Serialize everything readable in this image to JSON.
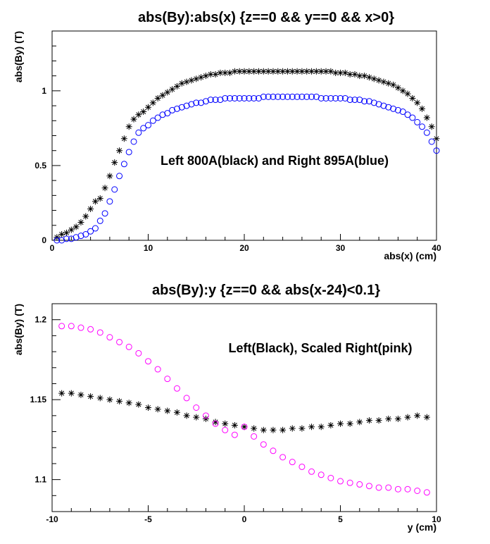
{
  "chart_data": [
    {
      "type": "scatter",
      "title": "abs(By):abs(x) {z==0 && y==0 && x>0}",
      "xlabel": "abs(x) (cm)",
      "ylabel": "abs(By) (T)",
      "xlim": [
        0,
        40
      ],
      "ylim": [
        0,
        1.4
      ],
      "x_ticks": [
        0,
        10,
        20,
        30,
        40
      ],
      "x_tick_labels": [
        "0",
        "10",
        "20",
        "30",
        "40"
      ],
      "y_ticks": [
        0,
        0.5,
        1
      ],
      "y_tick_labels": [
        "0",
        "0.5",
        "1"
      ],
      "annotation": "Left 800A(black) and Right 895A(blue)",
      "grid": false,
      "series": [
        {
          "marker": "asterisk",
          "color": "#000000",
          "x": [
            0.5,
            1.0,
            1.5,
            2.0,
            2.5,
            3.0,
            3.5,
            4.0,
            4.5,
            5.0,
            5.5,
            6.0,
            6.5,
            7.0,
            7.5,
            8.0,
            8.5,
            9.0,
            9.5,
            10.0,
            10.5,
            11.0,
            11.5,
            12.0,
            12.5,
            13.0,
            13.5,
            14.0,
            14.5,
            15.0,
            15.5,
            16.0,
            16.5,
            17.0,
            17.5,
            18.0,
            18.5,
            19.0,
            19.5,
            20.0,
            20.5,
            21.0,
            21.5,
            22.0,
            22.5,
            23.0,
            23.5,
            24.0,
            24.5,
            25.0,
            25.5,
            26.0,
            26.5,
            27.0,
            27.5,
            28.0,
            28.5,
            29.0,
            29.5,
            30.0,
            30.5,
            31.0,
            31.5,
            32.0,
            32.5,
            33.0,
            33.5,
            34.0,
            34.5,
            35.0,
            35.5,
            36.0,
            36.5,
            37.0,
            37.5,
            38.0,
            38.5,
            39.0,
            39.5,
            40.0
          ],
          "y": [
            0.02,
            0.04,
            0.05,
            0.07,
            0.09,
            0.12,
            0.16,
            0.21,
            0.26,
            0.28,
            0.35,
            0.43,
            0.52,
            0.6,
            0.68,
            0.76,
            0.81,
            0.84,
            0.86,
            0.89,
            0.92,
            0.95,
            0.97,
            0.99,
            1.01,
            1.03,
            1.05,
            1.06,
            1.07,
            1.08,
            1.09,
            1.1,
            1.11,
            1.11,
            1.12,
            1.12,
            1.12,
            1.13,
            1.13,
            1.13,
            1.13,
            1.13,
            1.13,
            1.13,
            1.13,
            1.13,
            1.13,
            1.13,
            1.13,
            1.13,
            1.13,
            1.13,
            1.13,
            1.13,
            1.13,
            1.13,
            1.13,
            1.13,
            1.12,
            1.12,
            1.12,
            1.11,
            1.11,
            1.1,
            1.1,
            1.09,
            1.08,
            1.07,
            1.06,
            1.05,
            1.04,
            1.02,
            1.0,
            0.98,
            0.95,
            0.92,
            0.88,
            0.82,
            0.76,
            0.68
          ]
        },
        {
          "marker": "circle",
          "color": "#0000ff",
          "x": [
            0.5,
            1.0,
            1.5,
            2.0,
            2.5,
            3.0,
            3.5,
            4.0,
            4.5,
            5.0,
            5.5,
            6.0,
            6.5,
            7.0,
            7.5,
            8.0,
            8.5,
            9.0,
            9.5,
            10.0,
            10.5,
            11.0,
            11.5,
            12.0,
            12.5,
            13.0,
            13.5,
            14.0,
            14.5,
            15.0,
            15.5,
            16.0,
            16.5,
            17.0,
            17.5,
            18.0,
            18.5,
            19.0,
            19.5,
            20.0,
            20.5,
            21.0,
            21.5,
            22.0,
            22.5,
            23.0,
            23.5,
            24.0,
            24.5,
            25.0,
            25.5,
            26.0,
            26.5,
            27.0,
            27.5,
            28.0,
            28.5,
            29.0,
            29.5,
            30.0,
            30.5,
            31.0,
            31.5,
            32.0,
            32.5,
            33.0,
            33.5,
            34.0,
            34.5,
            35.0,
            35.5,
            36.0,
            36.5,
            37.0,
            37.5,
            38.0,
            38.5,
            39.0,
            39.5,
            40.0
          ],
          "y": [
            0.0,
            0.0,
            0.01,
            0.01,
            0.02,
            0.03,
            0.04,
            0.06,
            0.08,
            0.13,
            0.18,
            0.26,
            0.34,
            0.43,
            0.51,
            0.59,
            0.66,
            0.72,
            0.75,
            0.77,
            0.8,
            0.82,
            0.84,
            0.85,
            0.87,
            0.88,
            0.89,
            0.9,
            0.91,
            0.92,
            0.92,
            0.93,
            0.94,
            0.94,
            0.94,
            0.95,
            0.95,
            0.95,
            0.95,
            0.95,
            0.95,
            0.95,
            0.95,
            0.96,
            0.96,
            0.96,
            0.96,
            0.96,
            0.96,
            0.96,
            0.96,
            0.96,
            0.96,
            0.96,
            0.96,
            0.95,
            0.95,
            0.95,
            0.95,
            0.95,
            0.95,
            0.94,
            0.94,
            0.94,
            0.93,
            0.93,
            0.92,
            0.91,
            0.9,
            0.89,
            0.88,
            0.87,
            0.86,
            0.84,
            0.82,
            0.79,
            0.76,
            0.72,
            0.66,
            0.6
          ]
        }
      ]
    },
    {
      "type": "scatter",
      "title": "abs(By):y {z==0 && abs(x-24)<0.1}",
      "xlabel": "y (cm)",
      "ylabel": "abs(By) (T)",
      "xlim": [
        -10,
        10
      ],
      "ylim": [
        1.08,
        1.21
      ],
      "x_ticks": [
        -10,
        -5,
        0,
        5,
        10
      ],
      "x_tick_labels": [
        "-10",
        "-5",
        "0",
        "5",
        "10"
      ],
      "y_ticks": [
        1.1,
        1.15,
        1.2
      ],
      "y_tick_labels": [
        "1.1",
        "1.15",
        "1.2"
      ],
      "annotation": "Left(Black), Scaled Right(pink)",
      "grid": false,
      "series": [
        {
          "marker": "asterisk",
          "color": "#000000",
          "x": [
            -9.5,
            -9.0,
            -8.5,
            -8.0,
            -7.5,
            -7.0,
            -6.5,
            -6.0,
            -5.5,
            -5.0,
            -4.5,
            -4.0,
            -3.5,
            -3.0,
            -2.5,
            -2.0,
            -1.5,
            -1.0,
            -0.5,
            0.0,
            0.5,
            1.0,
            1.5,
            2.0,
            2.5,
            3.0,
            3.5,
            4.0,
            4.5,
            5.0,
            5.5,
            6.0,
            6.5,
            7.0,
            7.5,
            8.0,
            8.5,
            9.0,
            9.5
          ],
          "y": [
            1.154,
            1.154,
            1.153,
            1.152,
            1.151,
            1.15,
            1.149,
            1.148,
            1.147,
            1.145,
            1.144,
            1.143,
            1.142,
            1.14,
            1.139,
            1.138,
            1.136,
            1.135,
            1.134,
            1.133,
            1.132,
            1.131,
            1.131,
            1.131,
            1.132,
            1.132,
            1.133,
            1.133,
            1.134,
            1.135,
            1.135,
            1.136,
            1.137,
            1.137,
            1.138,
            1.138,
            1.139,
            1.14,
            1.139
          ]
        },
        {
          "marker": "circle",
          "color": "#ff00ff",
          "x": [
            -9.5,
            -9.0,
            -8.5,
            -8.0,
            -7.5,
            -7.0,
            -6.5,
            -6.0,
            -5.5,
            -5.0,
            -4.5,
            -4.0,
            -3.5,
            -3.0,
            -2.5,
            -2.0,
            -1.5,
            -1.0,
            -0.5,
            0.0,
            0.5,
            1.0,
            1.5,
            2.0,
            2.5,
            3.0,
            3.5,
            4.0,
            4.5,
            5.0,
            5.5,
            6.0,
            6.5,
            7.0,
            7.5,
            8.0,
            8.5,
            9.0,
            9.5
          ],
          "y": [
            1.196,
            1.196,
            1.195,
            1.194,
            1.192,
            1.189,
            1.186,
            1.183,
            1.179,
            1.174,
            1.169,
            1.163,
            1.157,
            1.151,
            1.145,
            1.14,
            1.135,
            1.131,
            1.128,
            1.133,
            1.127,
            1.122,
            1.118,
            1.114,
            1.111,
            1.108,
            1.105,
            1.103,
            1.101,
            1.099,
            1.098,
            1.097,
            1.096,
            1.095,
            1.095,
            1.094,
            1.094,
            1.093,
            1.092
          ]
        }
      ]
    }
  ]
}
